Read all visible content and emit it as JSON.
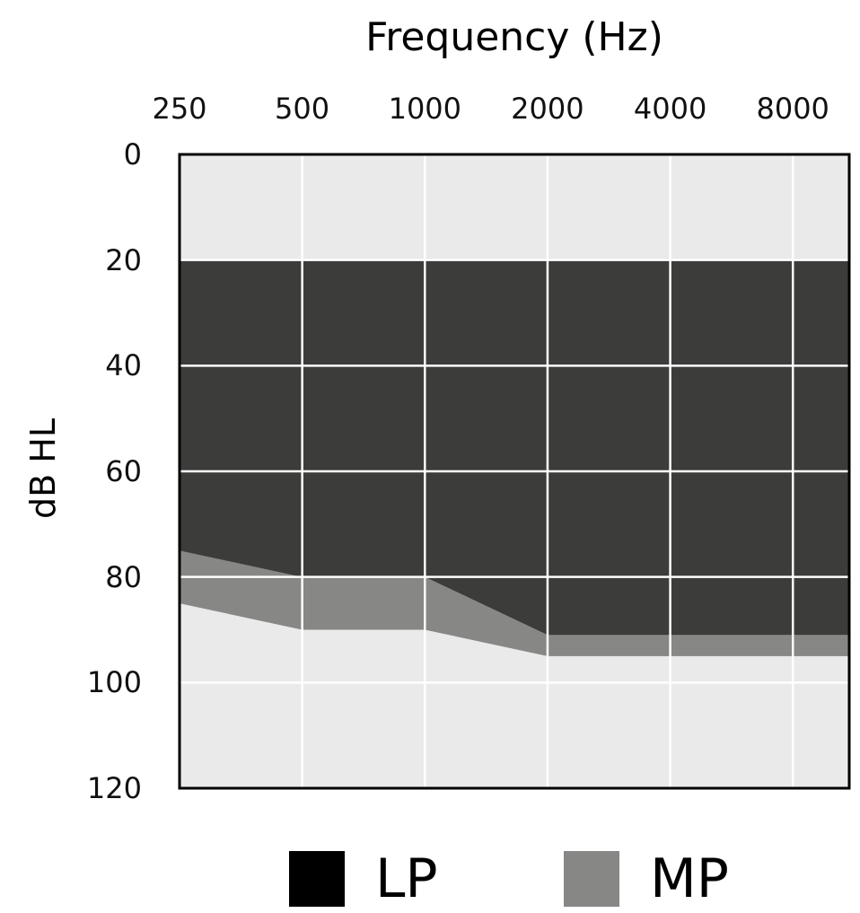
{
  "chart_data": {
    "type": "area",
    "title": "Frequency (Hz)",
    "xlabel": "Frequency (Hz)",
    "ylabel": "dB HL",
    "x_scale": "log2",
    "x_ticks": [
      "250",
      "500",
      "1000",
      "2000",
      "4000",
      "8000"
    ],
    "x_range": [
      250,
      11000
    ],
    "y_ticks": [
      "0",
      "20",
      "40",
      "60",
      "80",
      "100",
      "120"
    ],
    "ylim": [
      0,
      120
    ],
    "y_inverted": true,
    "grid": true,
    "legend_position": "bottom",
    "background_color": "#eaeaea",
    "series": [
      {
        "name": "LP",
        "color": "#3c3c3b",
        "swatch_color": "#000000",
        "upper": {
          "x": [
            250,
            11000
          ],
          "y": [
            20,
            20
          ]
        },
        "lower": {
          "x": [
            250,
            500,
            1000,
            2000,
            11000
          ],
          "y": [
            80,
            80,
            80,
            91,
            91
          ]
        }
      },
      {
        "name": "MP",
        "color": "#878786",
        "swatch_color": "#878786",
        "upper": {
          "x": [
            250,
            500,
            1000,
            2000,
            11000
          ],
          "y": [
            75,
            80,
            80,
            91,
            91
          ]
        },
        "lower": {
          "x": [
            250,
            500,
            1000,
            2000,
            11000
          ],
          "y": [
            85,
            90,
            90,
            95,
            95
          ]
        }
      }
    ]
  }
}
